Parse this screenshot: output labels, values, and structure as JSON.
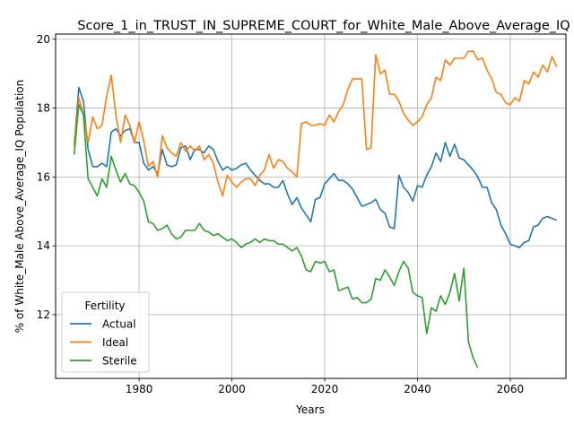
{
  "chart_data": {
    "type": "line",
    "title": "Score_1_in_TRUST_IN_SUPREME_COURT_for_White_Male_Above_Average_IQ",
    "xlabel": "Years",
    "ylabel": "% of White_Male Above_Average_IQ Population",
    "xlim": [
      1962,
      2072
    ],
    "ylim": [
      10.15,
      20.15
    ],
    "x_ticks": [
      1980,
      2000,
      2020,
      2040,
      2060
    ],
    "y_ticks": [
      12,
      14,
      16,
      18,
      20
    ],
    "grid": true,
    "legend": {
      "title": "Fertility",
      "placement": "lower-left"
    },
    "series": [
      {
        "name": "Actual",
        "color": "#1f77b4",
        "points": [
          [
            1966,
            16.9
          ],
          [
            1967,
            18.6
          ],
          [
            1968,
            18.2
          ],
          [
            1969,
            16.8
          ],
          [
            1970,
            16.3
          ],
          [
            1971,
            16.3
          ],
          [
            1972,
            16.4
          ],
          [
            1973,
            16.3
          ],
          [
            1974,
            17.3
          ],
          [
            1975,
            17.4
          ],
          [
            1976,
            17.2
          ],
          [
            1977,
            17.35
          ],
          [
            1978,
            17.4
          ],
          [
            1979,
            17.0
          ],
          [
            1980,
            17.0
          ],
          [
            1981,
            16.4
          ],
          [
            1982,
            16.2
          ],
          [
            1983,
            16.3
          ],
          [
            1984,
            16.1
          ],
          [
            1985,
            16.8
          ],
          [
            1986,
            16.35
          ],
          [
            1987,
            16.3
          ],
          [
            1988,
            16.35
          ],
          [
            1989,
            16.85
          ],
          [
            1990,
            16.9
          ],
          [
            1991,
            16.5
          ],
          [
            1992,
            16.8
          ],
          [
            1993,
            16.8
          ],
          [
            1994,
            16.7
          ],
          [
            1995,
            16.9
          ],
          [
            1996,
            16.8
          ],
          [
            1997,
            16.45
          ],
          [
            1998,
            16.2
          ],
          [
            1999,
            16.3
          ],
          [
            2000,
            16.2
          ],
          [
            2001,
            16.25
          ],
          [
            2002,
            16.35
          ],
          [
            2003,
            16.4
          ],
          [
            2004,
            16.2
          ],
          [
            2005,
            16.05
          ],
          [
            2006,
            15.9
          ],
          [
            2007,
            15.8
          ],
          [
            2008,
            15.8
          ],
          [
            2009,
            15.7
          ],
          [
            2010,
            15.7
          ],
          [
            2011,
            15.9
          ],
          [
            2012,
            15.5
          ],
          [
            2013,
            15.2
          ],
          [
            2014,
            15.4
          ],
          [
            2015,
            15.1
          ],
          [
            2016,
            14.9
          ],
          [
            2017,
            14.7
          ],
          [
            2018,
            15.35
          ],
          [
            2019,
            15.4
          ],
          [
            2020,
            15.8
          ],
          [
            2021,
            15.95
          ],
          [
            2022,
            16.1
          ],
          [
            2023,
            15.9
          ],
          [
            2024,
            15.9
          ],
          [
            2025,
            15.8
          ],
          [
            2026,
            15.65
          ],
          [
            2027,
            15.4
          ],
          [
            2028,
            15.15
          ],
          [
            2029,
            15.2
          ],
          [
            2030,
            15.25
          ],
          [
            2031,
            15.35
          ],
          [
            2032,
            15.05
          ],
          [
            2033,
            14.95
          ],
          [
            2034,
            14.55
          ],
          [
            2035,
            14.5
          ],
          [
            2036,
            16.05
          ],
          [
            2037,
            15.7
          ],
          [
            2038,
            15.55
          ],
          [
            2039,
            15.3
          ],
          [
            2040,
            15.75
          ],
          [
            2041,
            15.7
          ],
          [
            2042,
            16.05
          ],
          [
            2043,
            16.3
          ],
          [
            2044,
            16.7
          ],
          [
            2045,
            16.45
          ],
          [
            2046,
            17.0
          ],
          [
            2047,
            16.6
          ],
          [
            2048,
            16.95
          ],
          [
            2049,
            16.55
          ],
          [
            2050,
            16.5
          ],
          [
            2051,
            16.35
          ],
          [
            2052,
            16.2
          ],
          [
            2053,
            16.0
          ],
          [
            2054,
            15.7
          ],
          [
            2055,
            15.7
          ],
          [
            2056,
            15.25
          ],
          [
            2057,
            15.05
          ],
          [
            2058,
            14.6
          ],
          [
            2059,
            14.35
          ],
          [
            2060,
            14.05
          ],
          [
            2061,
            14.0
          ],
          [
            2062,
            13.95
          ],
          [
            2063,
            14.1
          ],
          [
            2064,
            14.15
          ],
          [
            2065,
            14.55
          ],
          [
            2066,
            14.6
          ],
          [
            2067,
            14.8
          ],
          [
            2068,
            14.85
          ],
          [
            2069,
            14.8
          ],
          [
            2070,
            14.75
          ]
        ]
      },
      {
        "name": "Ideal",
        "color": "#ff7f0e",
        "points": [
          [
            1966,
            16.9
          ],
          [
            1967,
            18.3
          ],
          [
            1968,
            17.8
          ],
          [
            1969,
            17.0
          ],
          [
            1970,
            17.75
          ],
          [
            1971,
            17.4
          ],
          [
            1972,
            17.5
          ],
          [
            1973,
            18.35
          ],
          [
            1974,
            18.95
          ],
          [
            1975,
            17.8
          ],
          [
            1976,
            17.0
          ],
          [
            1977,
            17.8
          ],
          [
            1978,
            17.5
          ],
          [
            1979,
            17.0
          ],
          [
            1980,
            17.6
          ],
          [
            1981,
            17.05
          ],
          [
            1982,
            16.3
          ],
          [
            1983,
            16.45
          ],
          [
            1984,
            16.0
          ],
          [
            1985,
            17.2
          ],
          [
            1986,
            16.85
          ],
          [
            1987,
            16.7
          ],
          [
            1988,
            16.6
          ],
          [
            1989,
            17.0
          ],
          [
            1990,
            16.75
          ],
          [
            1991,
            16.9
          ],
          [
            1992,
            16.75
          ],
          [
            1993,
            16.9
          ],
          [
            1994,
            16.5
          ],
          [
            1995,
            16.65
          ],
          [
            1996,
            16.4
          ],
          [
            1997,
            15.85
          ],
          [
            1998,
            15.45
          ],
          [
            1999,
            16.05
          ],
          [
            2000,
            15.85
          ],
          [
            2001,
            15.7
          ],
          [
            2002,
            15.85
          ],
          [
            2003,
            15.95
          ],
          [
            2004,
            15.95
          ],
          [
            2005,
            15.75
          ],
          [
            2006,
            16.05
          ],
          [
            2007,
            16.2
          ],
          [
            2008,
            16.65
          ],
          [
            2009,
            16.25
          ],
          [
            2010,
            16.5
          ],
          [
            2011,
            16.45
          ],
          [
            2012,
            16.25
          ],
          [
            2013,
            16.15
          ],
          [
            2014,
            16.0
          ],
          [
            2015,
            17.55
          ],
          [
            2016,
            17.6
          ],
          [
            2017,
            17.5
          ],
          [
            2018,
            17.5
          ],
          [
            2019,
            17.55
          ],
          [
            2020,
            17.5
          ],
          [
            2021,
            17.8
          ],
          [
            2022,
            17.6
          ],
          [
            2023,
            17.9
          ],
          [
            2024,
            18.1
          ],
          [
            2025,
            18.55
          ],
          [
            2026,
            18.85
          ],
          [
            2027,
            18.85
          ],
          [
            2028,
            18.85
          ],
          [
            2029,
            16.8
          ],
          [
            2030,
            16.85
          ],
          [
            2031,
            19.55
          ],
          [
            2032,
            19.0
          ],
          [
            2033,
            19.1
          ],
          [
            2034,
            18.4
          ],
          [
            2035,
            18.4
          ],
          [
            2036,
            18.2
          ],
          [
            2037,
            17.85
          ],
          [
            2038,
            17.65
          ],
          [
            2039,
            17.5
          ],
          [
            2040,
            17.6
          ],
          [
            2041,
            17.75
          ],
          [
            2042,
            18.1
          ],
          [
            2043,
            18.3
          ],
          [
            2044,
            18.9
          ],
          [
            2045,
            18.8
          ],
          [
            2046,
            19.4
          ],
          [
            2047,
            19.25
          ],
          [
            2048,
            19.45
          ],
          [
            2049,
            19.45
          ],
          [
            2050,
            19.45
          ],
          [
            2051,
            19.65
          ],
          [
            2052,
            19.65
          ],
          [
            2053,
            19.4
          ],
          [
            2054,
            19.45
          ],
          [
            2055,
            19.1
          ],
          [
            2056,
            18.85
          ],
          [
            2057,
            18.45
          ],
          [
            2058,
            18.4
          ],
          [
            2059,
            18.15
          ],
          [
            2060,
            18.1
          ],
          [
            2061,
            18.3
          ],
          [
            2062,
            18.2
          ],
          [
            2063,
            18.8
          ],
          [
            2064,
            18.7
          ],
          [
            2065,
            19.05
          ],
          [
            2066,
            18.9
          ],
          [
            2067,
            19.25
          ],
          [
            2068,
            19.05
          ],
          [
            2069,
            19.5
          ],
          [
            2070,
            19.2
          ]
        ]
      },
      {
        "name": "Sterile",
        "color": "#2ca02c",
        "points": [
          [
            1966,
            16.65
          ],
          [
            1967,
            18.1
          ],
          [
            1968,
            17.8
          ],
          [
            1969,
            15.95
          ],
          [
            1970,
            15.7
          ],
          [
            1971,
            15.45
          ],
          [
            1972,
            15.95
          ],
          [
            1973,
            15.7
          ],
          [
            1974,
            16.6
          ],
          [
            1975,
            16.2
          ],
          [
            1976,
            15.85
          ],
          [
            1977,
            16.1
          ],
          [
            1978,
            15.8
          ],
          [
            1979,
            15.75
          ],
          [
            1980,
            15.55
          ],
          [
            1981,
            15.3
          ],
          [
            1982,
            14.7
          ],
          [
            1983,
            14.65
          ],
          [
            1984,
            14.45
          ],
          [
            1985,
            14.5
          ],
          [
            1986,
            14.6
          ],
          [
            1987,
            14.35
          ],
          [
            1988,
            14.2
          ],
          [
            1989,
            14.25
          ],
          [
            1990,
            14.45
          ],
          [
            1991,
            14.45
          ],
          [
            1992,
            14.45
          ],
          [
            1993,
            14.65
          ],
          [
            1994,
            14.45
          ],
          [
            1995,
            14.4
          ],
          [
            1996,
            14.3
          ],
          [
            1997,
            14.35
          ],
          [
            1998,
            14.25
          ],
          [
            1999,
            14.15
          ],
          [
            2000,
            14.2
          ],
          [
            2001,
            14.1
          ],
          [
            2002,
            13.95
          ],
          [
            2003,
            14.05
          ],
          [
            2004,
            14.1
          ],
          [
            2005,
            14.2
          ],
          [
            2006,
            14.1
          ],
          [
            2007,
            14.2
          ],
          [
            2008,
            14.15
          ],
          [
            2009,
            14.15
          ],
          [
            2010,
            14.05
          ],
          [
            2011,
            14.05
          ],
          [
            2012,
            13.95
          ],
          [
            2013,
            13.85
          ],
          [
            2014,
            13.95
          ],
          [
            2015,
            13.7
          ],
          [
            2016,
            13.3
          ],
          [
            2017,
            13.25
          ],
          [
            2018,
            13.55
          ],
          [
            2019,
            13.5
          ],
          [
            2020,
            13.55
          ],
          [
            2021,
            13.25
          ],
          [
            2022,
            13.3
          ],
          [
            2023,
            12.7
          ],
          [
            2024,
            12.75
          ],
          [
            2025,
            12.8
          ],
          [
            2026,
            12.45
          ],
          [
            2027,
            12.5
          ],
          [
            2028,
            12.35
          ],
          [
            2029,
            12.35
          ],
          [
            2030,
            12.45
          ],
          [
            2031,
            13.05
          ],
          [
            2032,
            13.0
          ],
          [
            2033,
            13.3
          ],
          [
            2034,
            13.1
          ],
          [
            2035,
            12.85
          ],
          [
            2036,
            13.25
          ],
          [
            2037,
            13.55
          ],
          [
            2038,
            13.35
          ],
          [
            2039,
            12.65
          ],
          [
            2040,
            12.55
          ],
          [
            2041,
            12.5
          ],
          [
            2042,
            11.45
          ],
          [
            2043,
            12.2
          ],
          [
            2044,
            12.1
          ],
          [
            2045,
            12.55
          ],
          [
            2046,
            12.3
          ],
          [
            2047,
            12.65
          ],
          [
            2048,
            13.2
          ],
          [
            2049,
            12.4
          ],
          [
            2050,
            13.35
          ],
          [
            2051,
            11.2
          ],
          [
            2052,
            10.75
          ],
          [
            2053,
            10.45
          ]
        ]
      }
    ]
  }
}
